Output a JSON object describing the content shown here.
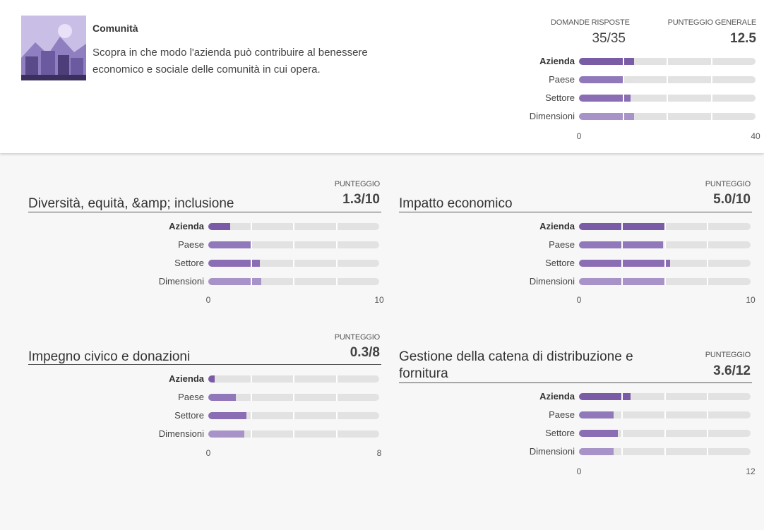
{
  "header": {
    "title": "Comunità",
    "description": "Scopra in che modo l'azienda può contribuire al benessere economico e sociale delle comunità in cui opera.",
    "answered_label": "DOMANDE RISPOSTE",
    "answered": "35/35",
    "score_label": "PUNTEGGIO GENERALE",
    "score": "12.5"
  },
  "bar_colors": [
    "#7a5ba6",
    "#9078bb",
    "#8a6db3",
    "#a893c8"
  ],
  "track_color": "#e2e2e2",
  "overview": {
    "type": "bar",
    "categories": [
      "Azienda",
      "Paese",
      "Settore",
      "Dimensioni"
    ],
    "values": [
      12.5,
      10.1,
      11.7,
      12.5
    ],
    "xlim": [
      0,
      40
    ],
    "xticks": [
      0,
      40
    ]
  },
  "sections": [
    {
      "title": "Diversità, equità, &amp; inclusione",
      "score_label": "PUNTEGGIO",
      "score": "1.3/10",
      "chart": {
        "type": "bar",
        "categories": [
          "Azienda",
          "Paese",
          "Settore",
          "Dimensioni"
        ],
        "values": [
          1.3,
          2.5,
          3.0,
          3.1
        ],
        "xlim": [
          0,
          10
        ],
        "xticks": [
          0,
          10
        ]
      }
    },
    {
      "title": "Impatto economico",
      "score_label": "PUNTEGGIO",
      "score": "5.0/10",
      "chart": {
        "type": "bar",
        "categories": [
          "Azienda",
          "Paese",
          "Settore",
          "Dimensioni"
        ],
        "values": [
          5.0,
          4.9,
          5.3,
          5.0
        ],
        "xlim": [
          0,
          10
        ],
        "xticks": [
          0,
          10
        ]
      }
    },
    {
      "title": "Impegno civico e donazioni",
      "score_label": "PUNTEGGIO",
      "score": "0.3/8",
      "chart": {
        "type": "bar",
        "categories": [
          "Azienda",
          "Paese",
          "Settore",
          "Dimensioni"
        ],
        "values": [
          0.3,
          1.3,
          1.8,
          1.7
        ],
        "xlim": [
          0,
          8
        ],
        "xticks": [
          0,
          8
        ]
      }
    },
    {
      "title": "Gestione della catena di distribuzione e fornitura",
      "score_label": "PUNTEGGIO",
      "score": "3.6/12",
      "chart": {
        "type": "bar",
        "categories": [
          "Azienda",
          "Paese",
          "Settore",
          "Dimensioni"
        ],
        "values": [
          3.6,
          2.4,
          2.7,
          2.4
        ],
        "xlim": [
          0,
          12
        ],
        "xticks": [
          0,
          12
        ]
      }
    }
  ]
}
